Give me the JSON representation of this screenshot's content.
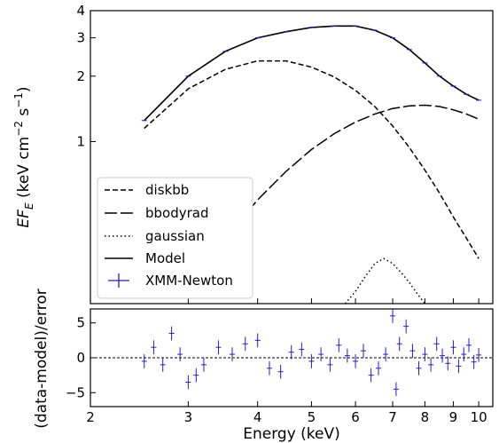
{
  "chart_data": [
    {
      "type": "line",
      "panel": "top",
      "ylabel_main": "EF",
      "ylabel_sub": "E",
      "ylabel_units_pre": " (keV cm",
      "ylabel_exp1": "−2",
      "ylabel_mid": " s",
      "ylabel_exp2": "−1",
      "ylabel_post": ")",
      "x_scale": "log",
      "y_scale": "log",
      "xlim": [
        2,
        10.6
      ],
      "ylim": [
        0.18,
        4
      ],
      "y_ticks": [
        "1",
        "2",
        "3",
        "4"
      ],
      "y_tick_values": [
        1,
        2,
        3,
        4
      ],
      "grid": false,
      "legend_position": "bottom-left",
      "legend": [
        "diskbb",
        "bbodyrad",
        "gaussian",
        "Model",
        "XMM-Newton"
      ],
      "series": [
        {
          "name": "diskbb",
          "style": "dashed",
          "x": [
            2.5,
            3.0,
            3.5,
            4.0,
            4.5,
            5.0,
            5.5,
            6.0,
            6.5,
            7.0,
            7.5,
            8.0,
            8.5,
            9.0,
            9.5,
            10.0
          ],
          "y": [
            1.15,
            1.75,
            2.15,
            2.35,
            2.35,
            2.2,
            1.98,
            1.72,
            1.45,
            1.18,
            0.94,
            0.74,
            0.58,
            0.45,
            0.36,
            0.29
          ]
        },
        {
          "name": "bbodyrad",
          "style": "long-dashed",
          "x": [
            3.0,
            3.5,
            4.0,
            4.5,
            5.0,
            5.5,
            6.0,
            6.5,
            7.0,
            7.5,
            8.0,
            8.5,
            9.0,
            9.5,
            10.0
          ],
          "y": [
            0.215,
            0.36,
            0.54,
            0.73,
            0.92,
            1.09,
            1.23,
            1.34,
            1.42,
            1.46,
            1.47,
            1.45,
            1.4,
            1.34,
            1.27
          ]
        },
        {
          "name": "gaussian",
          "style": "dotted",
          "x": [
            5.75,
            6.0,
            6.25,
            6.5,
            6.75,
            7.0,
            7.25,
            7.5,
            7.75,
            8.0
          ],
          "y": [
            0.18,
            0.205,
            0.24,
            0.275,
            0.29,
            0.275,
            0.25,
            0.225,
            0.2,
            0.18
          ]
        },
        {
          "name": "Model",
          "style": "solid",
          "x": [
            2.5,
            3.0,
            3.5,
            4.0,
            4.5,
            5.0,
            5.5,
            6.0,
            6.5,
            7.0,
            7.5,
            8.0,
            8.5,
            9.0,
            9.5,
            10.0
          ],
          "y": [
            1.25,
            2.0,
            2.6,
            3.0,
            3.2,
            3.35,
            3.4,
            3.4,
            3.25,
            3.0,
            2.65,
            2.3,
            2.0,
            1.8,
            1.65,
            1.55
          ]
        }
      ]
    },
    {
      "type": "scatter",
      "panel": "bottom",
      "xlabel": "Energy (keV)",
      "ylabel": "(data-model)/error",
      "x_scale": "log",
      "xlim": [
        2,
        10.6
      ],
      "ylim": [
        -7,
        7
      ],
      "x_ticks": [
        "2",
        "3",
        "4",
        "5",
        "6",
        "7",
        "8",
        "9",
        "10"
      ],
      "x_tick_values": [
        2,
        3,
        4,
        5,
        6,
        7,
        8,
        9,
        10
      ],
      "y_ticks": [
        "5",
        "0",
        "−5"
      ],
      "y_tick_values": [
        5,
        0,
        -5
      ],
      "reference_line": 0,
      "grid": false,
      "series": [
        {
          "name": "XMM-Newton",
          "x": [
            2.5,
            2.6,
            2.7,
            2.8,
            2.9,
            3.0,
            3.1,
            3.2,
            3.4,
            3.6,
            3.8,
            4.0,
            4.2,
            4.4,
            4.6,
            4.8,
            5.0,
            5.2,
            5.4,
            5.6,
            5.8,
            6.0,
            6.2,
            6.4,
            6.6,
            6.8,
            7.0,
            7.1,
            7.2,
            7.4,
            7.6,
            7.8,
            8.0,
            8.2,
            8.4,
            8.6,
            8.8,
            9.0,
            9.2,
            9.4,
            9.6,
            9.8,
            10.0
          ],
          "y": [
            -0.5,
            1.5,
            -1.0,
            3.5,
            0.5,
            -3.5,
            -2.5,
            -1.0,
            1.5,
            0.5,
            2.0,
            2.5,
            -1.5,
            -2.0,
            0.8,
            1.2,
            -0.5,
            0.5,
            -1.0,
            1.8,
            0.3,
            -0.5,
            1.0,
            -2.5,
            -1.5,
            0.5,
            6.0,
            -4.5,
            2.0,
            4.5,
            1.0,
            -1.5,
            0.5,
            -1.0,
            2.0,
            0.3,
            -0.8,
            1.5,
            -1.2,
            0.5,
            1.8,
            -0.6,
            0.4
          ]
        }
      ]
    }
  ]
}
